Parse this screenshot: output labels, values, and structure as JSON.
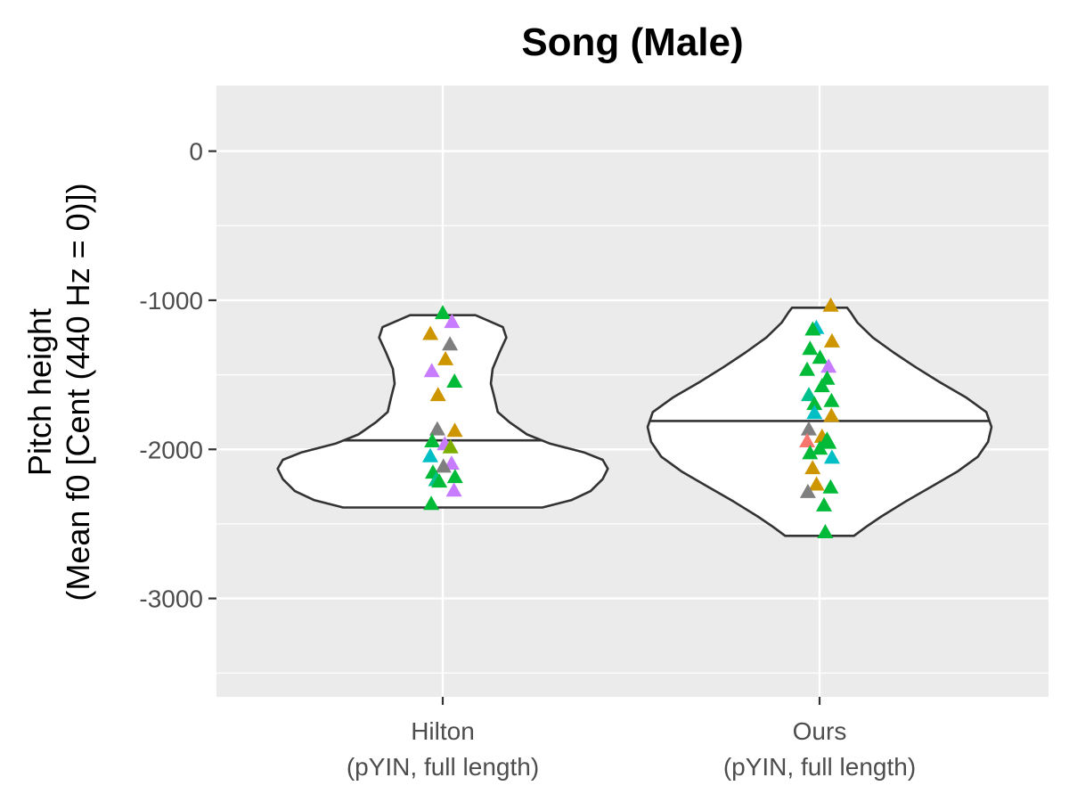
{
  "chart_data": {
    "type": "violin",
    "title": "Song (Male)",
    "ylabel_lines": [
      "Pitch height",
      "(Mean f0 [Cent (440 Hz = 0)])"
    ],
    "xlabel": "",
    "ylim": [
      -3660,
      440
    ],
    "y_ticks": [
      0,
      -1000,
      -2000,
      -3000
    ],
    "y_tick_labels": [
      "0",
      "-1000",
      "-2000",
      "-3000"
    ],
    "grid": true,
    "legend": "none",
    "categories": [
      {
        "line1": "Hilton",
        "line2": "(pYIN, full length)"
      },
      {
        "line1": "Ours",
        "line2": "(pYIN, full length)"
      }
    ],
    "series": [
      {
        "violin": {
          "median": -1940,
          "profile": [
            [
              -2390,
              0.58
            ],
            [
              -2340,
              0.75
            ],
            [
              -2280,
              0.86
            ],
            [
              -2200,
              0.93
            ],
            [
              -2130,
              0.96
            ],
            [
              -2070,
              0.93
            ],
            [
              -2020,
              0.82
            ],
            [
              -1960,
              0.62
            ],
            [
              -1900,
              0.49
            ],
            [
              -1820,
              0.39
            ],
            [
              -1750,
              0.32
            ],
            [
              -1650,
              0.3
            ],
            [
              -1560,
              0.28
            ],
            [
              -1460,
              0.29
            ],
            [
              -1350,
              0.33
            ],
            [
              -1250,
              0.37
            ],
            [
              -1180,
              0.35
            ],
            [
              -1130,
              0.25
            ],
            [
              -1100,
              0.19
            ]
          ]
        },
        "points": [
          {
            "y": -1090,
            "color": "#00ba38"
          },
          {
            "y": -1150,
            "color": "#c77cff"
          },
          {
            "y": -1230,
            "color": "#cd9600"
          },
          {
            "y": -1300,
            "color": "#7f7f7f"
          },
          {
            "y": -1400,
            "color": "#cd9600"
          },
          {
            "y": -1480,
            "color": "#c77cff"
          },
          {
            "y": -1550,
            "color": "#00ba38"
          },
          {
            "y": -1640,
            "color": "#cd9600"
          },
          {
            "y": -1870,
            "color": "#7f7f7f"
          },
          {
            "y": -1880,
            "color": "#cd9600"
          },
          {
            "y": -1950,
            "color": "#00ba38"
          },
          {
            "y": -1970,
            "color": "#c77cff"
          },
          {
            "y": -1990,
            "color": "#7cae00"
          },
          {
            "y": -2050,
            "color": "#00bfc4"
          },
          {
            "y": -2100,
            "color": "#c77cff"
          },
          {
            "y": -2120,
            "color": "#7f7f7f"
          },
          {
            "y": -2160,
            "color": "#00ba38"
          },
          {
            "y": -2190,
            "color": "#00ba38"
          },
          {
            "y": -2210,
            "color": "#00c08b"
          },
          {
            "y": -2220,
            "color": "#00ba38"
          },
          {
            "y": -2280,
            "color": "#c77cff"
          },
          {
            "y": -2370,
            "color": "#00ba38"
          }
        ]
      },
      {
        "violin": {
          "median": -1810,
          "profile": [
            [
              -2580,
              0.2
            ],
            [
              -2520,
              0.27
            ],
            [
              -2450,
              0.36
            ],
            [
              -2350,
              0.5
            ],
            [
              -2250,
              0.65
            ],
            [
              -2150,
              0.8
            ],
            [
              -2050,
              0.92
            ],
            [
              -1950,
              0.98
            ],
            [
              -1850,
              1.0
            ],
            [
              -1750,
              0.97
            ],
            [
              -1650,
              0.85
            ],
            [
              -1550,
              0.7
            ],
            [
              -1450,
              0.56
            ],
            [
              -1350,
              0.43
            ],
            [
              -1250,
              0.31
            ],
            [
              -1150,
              0.22
            ],
            [
              -1080,
              0.18
            ],
            [
              -1050,
              0.16
            ]
          ]
        },
        "points": [
          {
            "y": -1040,
            "color": "#cd9600"
          },
          {
            "y": -1190,
            "color": "#00bfc4"
          },
          {
            "y": -1200,
            "color": "#00ba38"
          },
          {
            "y": -1280,
            "color": "#cd9600"
          },
          {
            "y": -1330,
            "color": "#00ba38"
          },
          {
            "y": -1390,
            "color": "#00ba38"
          },
          {
            "y": -1450,
            "color": "#c77cff"
          },
          {
            "y": -1470,
            "color": "#00ba38"
          },
          {
            "y": -1530,
            "color": "#00ba38"
          },
          {
            "y": -1580,
            "color": "#00ba38"
          },
          {
            "y": -1640,
            "color": "#00c08b"
          },
          {
            "y": -1680,
            "color": "#00ba38"
          },
          {
            "y": -1700,
            "color": "#00ba38"
          },
          {
            "y": -1760,
            "color": "#00bfc4"
          },
          {
            "y": -1780,
            "color": "#cd9600"
          },
          {
            "y": -1870,
            "color": "#7f7f7f"
          },
          {
            "y": -1920,
            "color": "#cd9600"
          },
          {
            "y": -1940,
            "color": "#00ba38"
          },
          {
            "y": -1950,
            "color": "#f8766d"
          },
          {
            "y": -1960,
            "color": "#00ba38"
          },
          {
            "y": -2000,
            "color": "#00ba38"
          },
          {
            "y": -2030,
            "color": "#00ba38"
          },
          {
            "y": -2060,
            "color": "#00bfc4"
          },
          {
            "y": -2130,
            "color": "#cd9600"
          },
          {
            "y": -2240,
            "color": "#cd9600"
          },
          {
            "y": -2260,
            "color": "#00ba38"
          },
          {
            "y": -2290,
            "color": "#7f7f7f"
          },
          {
            "y": -2380,
            "color": "#00ba38"
          },
          {
            "y": -2560,
            "color": "#00ba38"
          }
        ]
      }
    ],
    "colors": {
      "panel": "#ebebeb",
      "grid": "#ffffff",
      "violin_fill": "#ffffff",
      "violin_stroke": "#333333"
    }
  }
}
